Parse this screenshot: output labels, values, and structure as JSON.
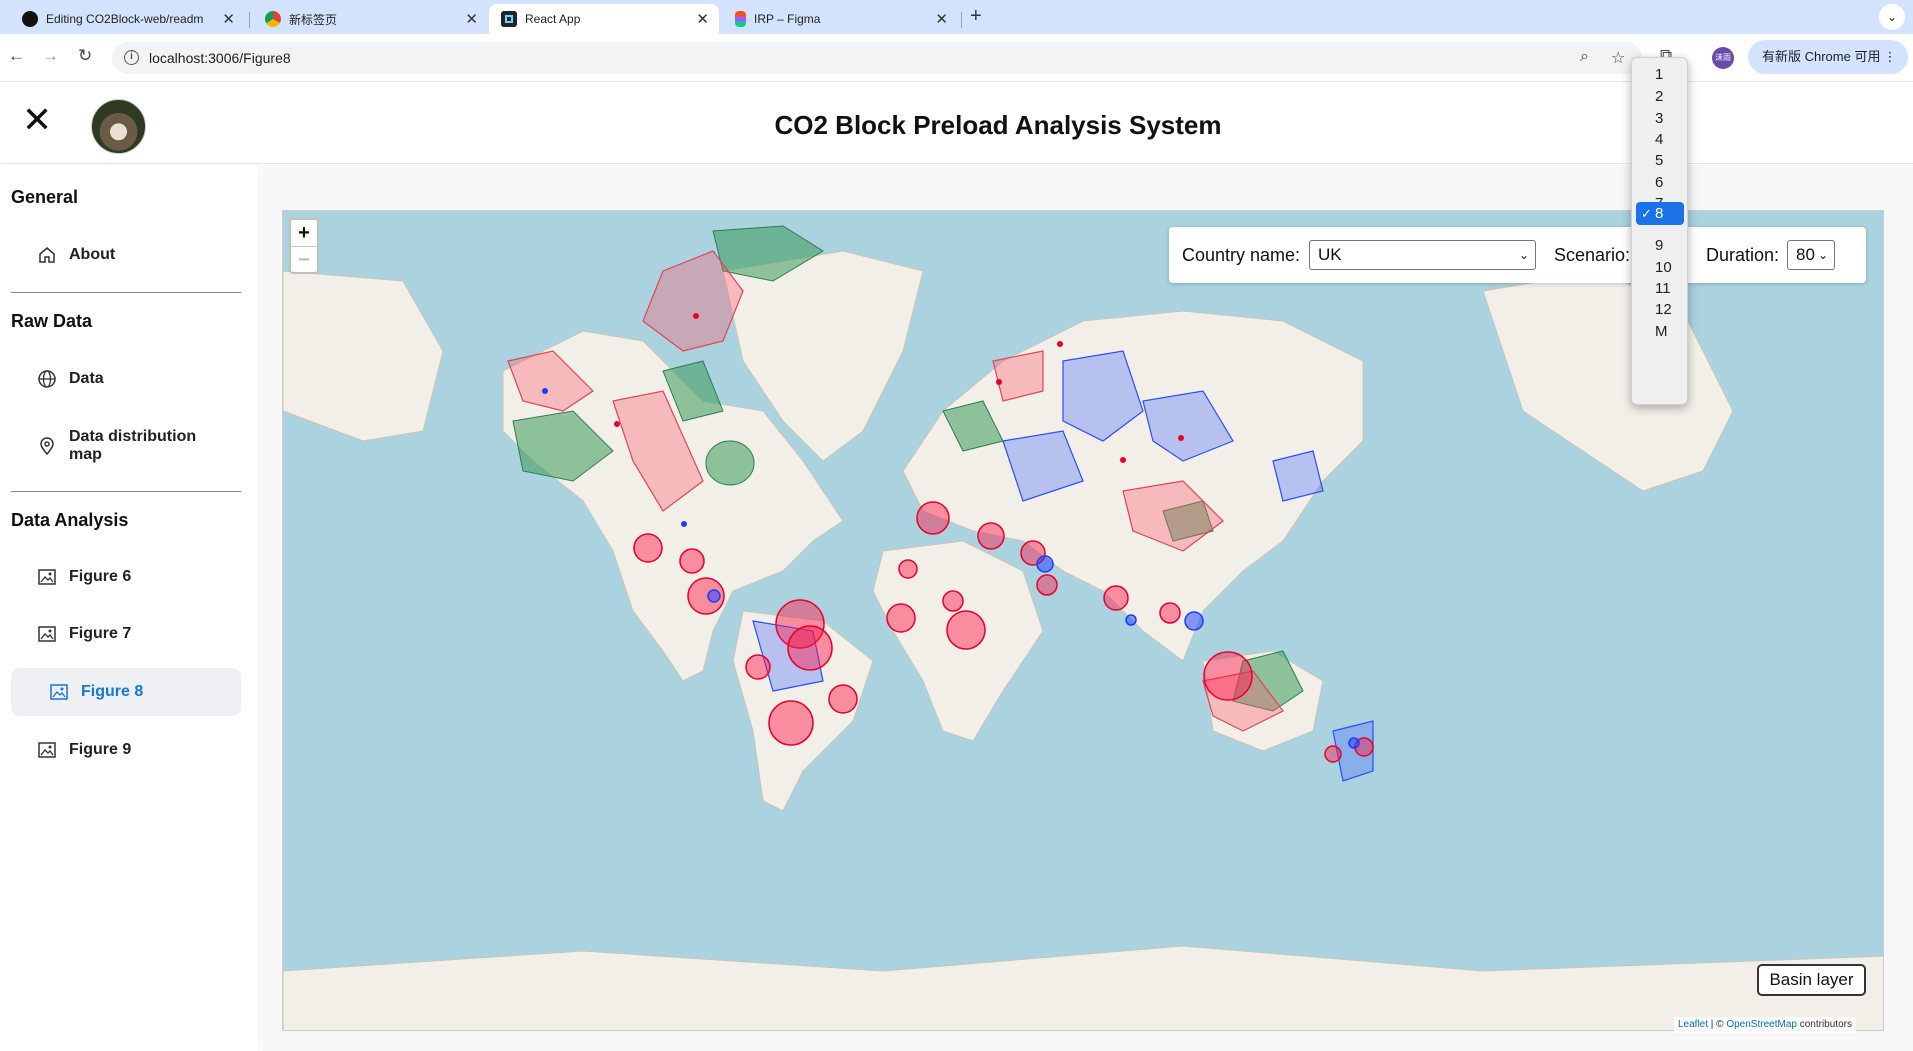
{
  "browser": {
    "tabs": [
      {
        "title": "Editing CO2Block-web/readm",
        "favicon": "github-icon"
      },
      {
        "title": "新标签页",
        "favicon": "chrome-icon"
      },
      {
        "title": "React App",
        "favicon": "react-icon",
        "active": true
      },
      {
        "title": "IRP – Figma",
        "favicon": "figma-icon"
      }
    ],
    "url": "localhost:3006/Figure8",
    "update_label": "有新版 Chrome 可用",
    "profile_label": "沫雨"
  },
  "header": {
    "title": "CO2 Block Preload Analysis System"
  },
  "sidebar": {
    "sections": [
      {
        "title": "General",
        "items": [
          {
            "label": "About",
            "icon": "home-icon"
          }
        ]
      },
      {
        "title": "Raw Data",
        "items": [
          {
            "label": "Data",
            "icon": "globe-icon"
          },
          {
            "label": "Data distribution map",
            "icon": "location-pin-icon"
          }
        ]
      },
      {
        "title": "Data Analysis",
        "items": [
          {
            "label": "Figure 6",
            "icon": "image-icon"
          },
          {
            "label": "Figure 7",
            "icon": "image-icon"
          },
          {
            "label": "Figure 8",
            "icon": "image-icon",
            "active": true
          },
          {
            "label": "Figure 9",
            "icon": "image-icon"
          }
        ]
      }
    ]
  },
  "controls": {
    "country_label": "Country name:",
    "country_value": "UK",
    "scenario_label": "Scenario:",
    "scenario_value": "8",
    "duration_label": "Duration:",
    "duration_value": "80",
    "scenario_options": [
      "1",
      "2",
      "3",
      "4",
      "5",
      "6",
      "7",
      "8",
      "9",
      "10",
      "11",
      "12",
      "M"
    ]
  },
  "map": {
    "zoom_in": "+",
    "zoom_out": "−",
    "basin_button": "Basin layer",
    "attribution_leaflet": "Leaflet",
    "attribution_sep": " | © ",
    "attribution_osm": "OpenStreetMap",
    "attribution_tail": " contributors",
    "colors": {
      "water": "#aad3df",
      "land": "#f2efe9",
      "red": "#ff1744",
      "blue": "#1a3cff",
      "green": "#3a9a5a"
    }
  }
}
